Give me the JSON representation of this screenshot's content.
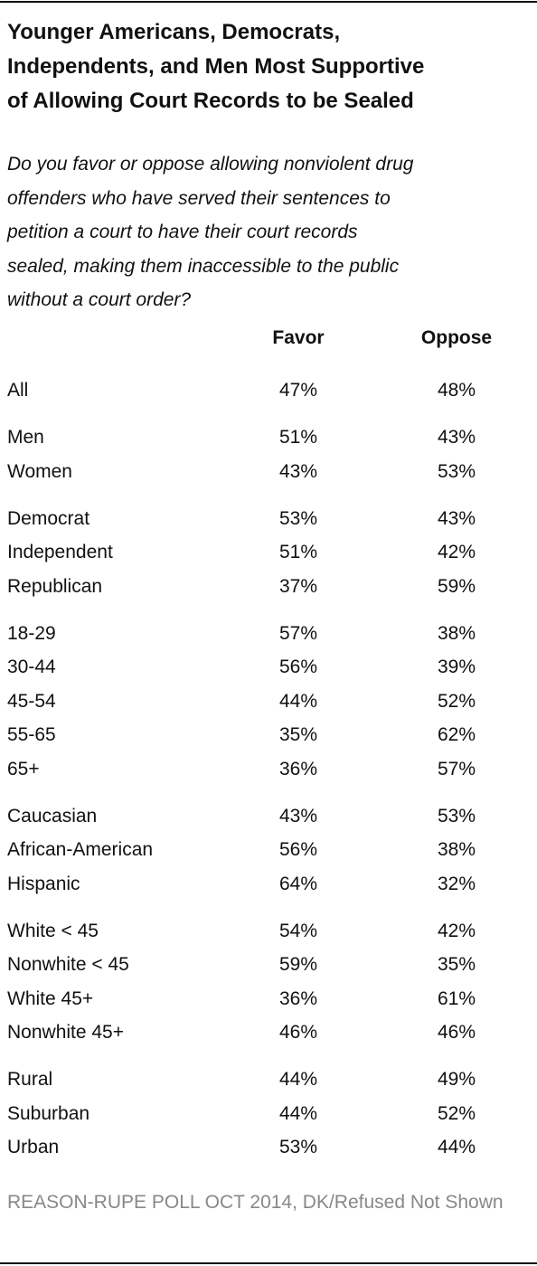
{
  "title": [
    "Younger Americans, Democrats,",
    "Independents, and Men Most Supportive",
    "of Allowing Court Records to be Sealed"
  ],
  "question": [
    "Do you favor or oppose allowing nonviolent drug",
    "offenders who have served their sentences to",
    "petition a court to have their court records",
    "sealed, making them inaccessible to the public",
    "without a court order?"
  ],
  "table": {
    "headers": [
      "Favor",
      "Oppose"
    ],
    "groups": [
      [
        [
          "All",
          "47%",
          "48%"
        ]
      ],
      [
        [
          "Men",
          "51%",
          "43%"
        ],
        [
          "Women",
          "43%",
          "53%"
        ]
      ],
      [
        [
          "Democrat",
          "53%",
          "43%"
        ],
        [
          "Independent",
          "51%",
          "42%"
        ],
        [
          "Republican",
          "37%",
          "59%"
        ]
      ],
      [
        [
          "18-29",
          "57%",
          "38%"
        ],
        [
          "30-44",
          "56%",
          "39%"
        ],
        [
          "45-54",
          "44%",
          "52%"
        ],
        [
          "55-65",
          "35%",
          "62%"
        ],
        [
          "65+",
          "36%",
          "57%"
        ]
      ],
      [
        [
          "Caucasian",
          "43%",
          "53%"
        ],
        [
          "African-American",
          "56%",
          "38%"
        ],
        [
          "Hispanic",
          "64%",
          "32%"
        ]
      ],
      [
        [
          "White < 45",
          "54%",
          "42%"
        ],
        [
          "Nonwhite < 45",
          "59%",
          "35%"
        ],
        [
          "White 45+",
          "36%",
          "61%"
        ],
        [
          "Nonwhite 45+",
          "46%",
          "46%"
        ]
      ],
      [
        [
          "Rural",
          "44%",
          "49%"
        ],
        [
          "Suburban",
          "44%",
          "52%"
        ],
        [
          "Urban",
          "53%",
          "44%"
        ]
      ]
    ]
  },
  "footer": "REASON-RUPE POLL OCT 2014, DK/Refused Not Shown"
}
